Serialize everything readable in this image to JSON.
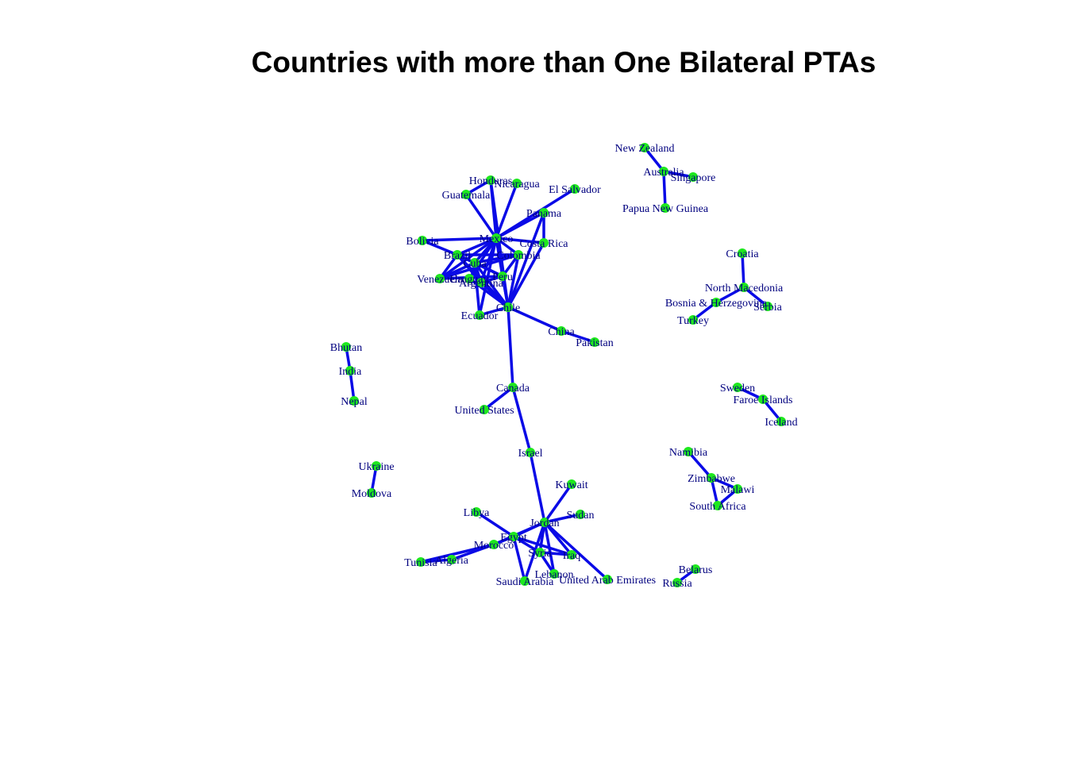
{
  "title": "Countries with more than One Bilateral PTAs",
  "colors": {
    "edge": "#0a0ae6",
    "node": "#1ee81e",
    "label": "#00007f"
  },
  "nodes": [
    {
      "id": "New Zealand",
      "label": "New Zealand"
    },
    {
      "id": "Australia",
      "label": "Australia"
    },
    {
      "id": "Singapore",
      "label": "Singapore"
    },
    {
      "id": "Papua New Guinea",
      "label": "Papua New Guinea"
    },
    {
      "id": "Honduras",
      "label": "Honduras"
    },
    {
      "id": "Nicaragua",
      "label": "Nicaragua"
    },
    {
      "id": "Guatemala",
      "label": "Guatemala"
    },
    {
      "id": "El Salvador",
      "label": "El Salvador"
    },
    {
      "id": "Panama",
      "label": "Panama"
    },
    {
      "id": "Mexico",
      "label": "Mexico"
    },
    {
      "id": "Costa Rica",
      "label": "Costa Rica"
    },
    {
      "id": "Bolivia",
      "label": "Bolivia"
    },
    {
      "id": "Brazil",
      "label": "Brazil"
    },
    {
      "id": "Cuba",
      "label": "Cuba"
    },
    {
      "id": "Colombia",
      "label": "Colombia"
    },
    {
      "id": "Venezuela",
      "label": "Venezuela"
    },
    {
      "id": "Uruguay",
      "label": "Uruguay"
    },
    {
      "id": "Argentina",
      "label": "Argentina"
    },
    {
      "id": "Peru",
      "label": "Peru"
    },
    {
      "id": "Chile",
      "label": "Chile"
    },
    {
      "id": "Ecuador",
      "label": "Ecuador"
    },
    {
      "id": "China",
      "label": "China"
    },
    {
      "id": "Pakistan",
      "label": "Pakistan"
    },
    {
      "id": "Croatia",
      "label": "Croatia"
    },
    {
      "id": "North Macedonia",
      "label": "North Macedonia"
    },
    {
      "id": "Bosnia & Herzegovina",
      "label": "Bosnia & Herzegovina"
    },
    {
      "id": "Serbia",
      "label": "Serbia"
    },
    {
      "id": "Turkey",
      "label": "Turkey"
    },
    {
      "id": "Bhutan",
      "label": "Bhutan"
    },
    {
      "id": "India",
      "label": "India"
    },
    {
      "id": "Nepal",
      "label": "Nepal"
    },
    {
      "id": "Canada",
      "label": "Canada"
    },
    {
      "id": "United States",
      "label": "United States"
    },
    {
      "id": "Sweden",
      "label": "Sweden"
    },
    {
      "id": "Faroe Islands",
      "label": "Faroe Islands"
    },
    {
      "id": "Iceland",
      "label": "Iceland"
    },
    {
      "id": "Israel",
      "label": "Israel"
    },
    {
      "id": "Namibia",
      "label": "Namibia"
    },
    {
      "id": "Zimbabwe",
      "label": "Zimbabwe"
    },
    {
      "id": "Malawi",
      "label": "Malawi"
    },
    {
      "id": "South Africa",
      "label": "South Africa"
    },
    {
      "id": "Ukraine",
      "label": "Ukraine"
    },
    {
      "id": "Moldova",
      "label": "Moldova"
    },
    {
      "id": "Kuwait",
      "label": "Kuwait"
    },
    {
      "id": "Libya",
      "label": "Libya"
    },
    {
      "id": "Sudan",
      "label": "Sudan"
    },
    {
      "id": "Jordan",
      "label": "Jordan"
    },
    {
      "id": "Egypt",
      "label": "Egypt"
    },
    {
      "id": "Morocco",
      "label": "Morocco"
    },
    {
      "id": "Syria",
      "label": "Syria"
    },
    {
      "id": "Iraq",
      "label": "Iraq"
    },
    {
      "id": "Tunisia",
      "label": "Tunisia"
    },
    {
      "id": "Algeria",
      "label": "Algeria"
    },
    {
      "id": "Lebanon",
      "label": "Lebanon"
    },
    {
      "id": "Saudi Arabia",
      "label": "Saudi Arabia"
    },
    {
      "id": "United Arab Emirates",
      "label": "United Arab Emirates"
    },
    {
      "id": "Belarus",
      "label": "Belarus"
    },
    {
      "id": "Russia",
      "label": "Russia"
    }
  ],
  "edges": [
    [
      "New Zealand",
      "Australia"
    ],
    [
      "Australia",
      "Singapore"
    ],
    [
      "Australia",
      "Papua New Guinea"
    ],
    [
      "Mexico",
      "Honduras"
    ],
    [
      "Mexico",
      "Nicaragua"
    ],
    [
      "Mexico",
      "Guatemala"
    ],
    [
      "Mexico",
      "El Salvador"
    ],
    [
      "Mexico",
      "Panama"
    ],
    [
      "Mexico",
      "Costa Rica"
    ],
    [
      "Mexico",
      "Bolivia"
    ],
    [
      "Mexico",
      "Brazil"
    ],
    [
      "Mexico",
      "Cuba"
    ],
    [
      "Mexico",
      "Colombia"
    ],
    [
      "Mexico",
      "Venezuela"
    ],
    [
      "Mexico",
      "Uruguay"
    ],
    [
      "Mexico",
      "Argentina"
    ],
    [
      "Mexico",
      "Peru"
    ],
    [
      "Mexico",
      "Chile"
    ],
    [
      "Mexico",
      "Ecuador"
    ],
    [
      "Honduras",
      "Guatemala"
    ],
    [
      "Honduras",
      "Chile"
    ],
    [
      "Panama",
      "Costa Rica"
    ],
    [
      "Panama",
      "Chile"
    ],
    [
      "Costa Rica",
      "Chile"
    ],
    [
      "Bolivia",
      "Brazil"
    ],
    [
      "Brazil",
      "Cuba"
    ],
    [
      "Brazil",
      "Colombia"
    ],
    [
      "Brazil",
      "Venezuela"
    ],
    [
      "Brazil",
      "Argentina"
    ],
    [
      "Brazil",
      "Chile"
    ],
    [
      "Brazil",
      "Peru"
    ],
    [
      "Cuba",
      "Colombia"
    ],
    [
      "Cuba",
      "Venezuela"
    ],
    [
      "Cuba",
      "Argentina"
    ],
    [
      "Cuba",
      "Chile"
    ],
    [
      "Cuba",
      "Peru"
    ],
    [
      "Colombia",
      "Venezuela"
    ],
    [
      "Colombia",
      "Peru"
    ],
    [
      "Colombia",
      "Chile"
    ],
    [
      "Argentina",
      "Chile"
    ],
    [
      "Argentina",
      "Peru"
    ],
    [
      "Uruguay",
      "Chile"
    ],
    [
      "Peru",
      "Chile"
    ],
    [
      "Peru",
      "Venezuela"
    ],
    [
      "Chile",
      "Ecuador"
    ],
    [
      "Ecuador",
      "Cuba"
    ],
    [
      "Chile",
      "China"
    ],
    [
      "China",
      "Pakistan"
    ],
    [
      "Chile",
      "Canada"
    ],
    [
      "Croatia",
      "North Macedonia"
    ],
    [
      "North Macedonia",
      "Bosnia & Herzegovina"
    ],
    [
      "North Macedonia",
      "Serbia"
    ],
    [
      "Bosnia & Herzegovina",
      "Turkey"
    ],
    [
      "Bhutan",
      "India"
    ],
    [
      "India",
      "Nepal"
    ],
    [
      "Canada",
      "United States"
    ],
    [
      "Canada",
      "Israel"
    ],
    [
      "Israel",
      "Jordan"
    ],
    [
      "Sweden",
      "Faroe Islands"
    ],
    [
      "Faroe Islands",
      "Iceland"
    ],
    [
      "Namibia",
      "Zimbabwe"
    ],
    [
      "Zimbabwe",
      "Malawi"
    ],
    [
      "Zimbabwe",
      "South Africa"
    ],
    [
      "Malawi",
      "South Africa"
    ],
    [
      "Ukraine",
      "Moldova"
    ],
    [
      "Jordan",
      "Kuwait"
    ],
    [
      "Jordan",
      "Sudan"
    ],
    [
      "Jordan",
      "Egypt"
    ],
    [
      "Jordan",
      "Morocco"
    ],
    [
      "Jordan",
      "Syria"
    ],
    [
      "Jordan",
      "Iraq"
    ],
    [
      "Jordan",
      "Lebanon"
    ],
    [
      "Jordan",
      "Saudi Arabia"
    ],
    [
      "Jordan",
      "United Arab Emirates"
    ],
    [
      "Libya",
      "Egypt"
    ],
    [
      "Egypt",
      "Morocco"
    ],
    [
      "Egypt",
      "Syria"
    ],
    [
      "Egypt",
      "Iraq"
    ],
    [
      "Egypt",
      "Saudi Arabia"
    ],
    [
      "Syria",
      "Lebanon"
    ],
    [
      "Syria",
      "Iraq"
    ],
    [
      "Morocco",
      "Tunisia"
    ],
    [
      "Morocco",
      "Algeria"
    ],
    [
      "Tunisia",
      "Algeria"
    ],
    [
      "Belarus",
      "Russia"
    ]
  ]
}
